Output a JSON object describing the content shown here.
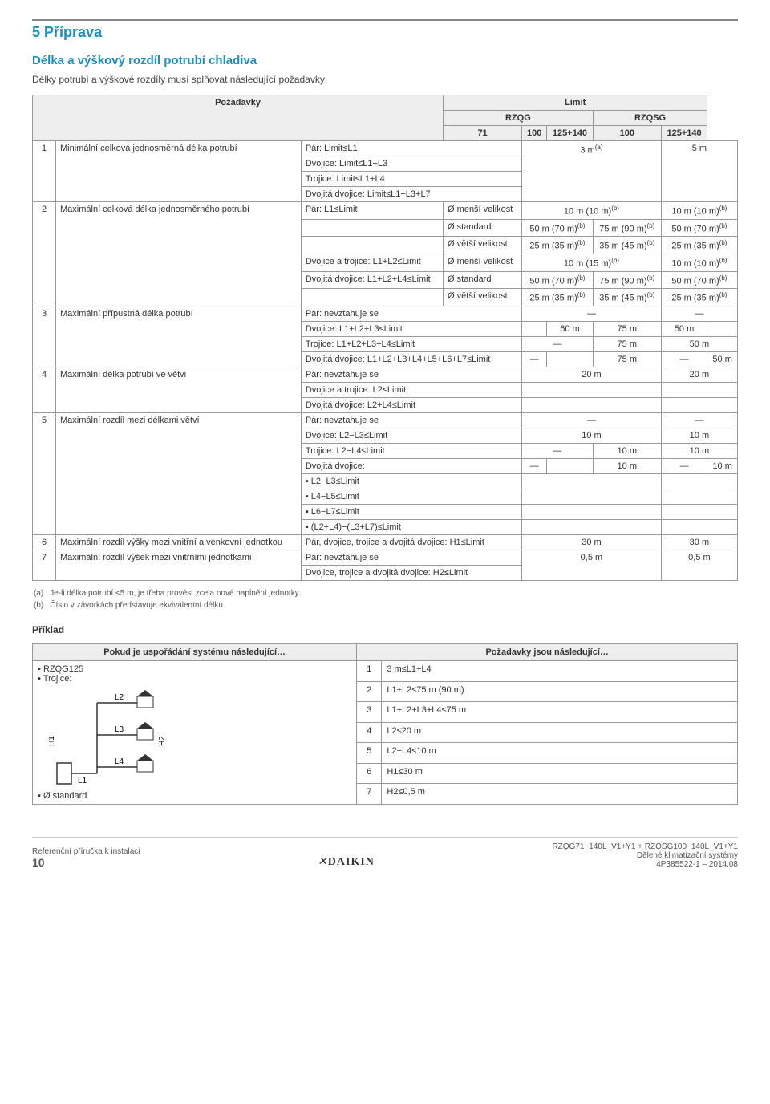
{
  "section_number": "5",
  "section_title": "Příprava",
  "subtitle": "Délka a výškový rozdíl potrubí chladiva",
  "intro": "Délky potrubí a výškové rozdíly musí splňovat následující požadavky:",
  "limits_table": {
    "h_req": "Požadavky",
    "h_limit": "Limit",
    "h_rzqg": "RZQG",
    "h_rzqsg": "RZQSG",
    "h_71": "71",
    "h_100a": "100",
    "h_125a": "125+140",
    "h_100b": "100",
    "h_125b": "125+140",
    "rows": [
      {
        "n": "1",
        "name": "Minimální celková jednosměrná délka potrubí",
        "req_lines": [
          "Pár: Limit≤L1",
          "Dvojice: Limit≤L1+L3",
          "Trojice: Limit≤L1+L4",
          "Dvojitá dvojice: Limit≤L1+L3+L7"
        ],
        "c1": "",
        "c2": "3 m(a)",
        "c3": "",
        "c4": "5 m",
        "c5": ""
      },
      {
        "n": "2",
        "name": "Maximální celková délka jednosměrného potrubí",
        "sub": [
          {
            "req": "Pár: L1≤Limit",
            "sub2": "Ø menší velikost",
            "c1": "",
            "c2": "10 m (10 m)(b)",
            "c3": "",
            "c4": "10 m (10 m)(b)",
            "c5": ""
          },
          {
            "req": "",
            "sub2": "Ø standard",
            "c1": "50 m (70 m)(b)",
            "c2": "",
            "c3": "75 m (90 m)(b)",
            "c4": "50 m (70 m)(b)",
            "c5": ""
          },
          {
            "req": "",
            "sub2": "Ø větší velikost",
            "c1": "25 m (35 m)(b)",
            "c2": "",
            "c3": "35 m (45 m)(b)",
            "c4": "25 m (35 m)(b)",
            "c5": ""
          },
          {
            "req": "Dvojice a trojice: L1+L2≤Limit",
            "sub2": "Ø menší velikost",
            "c1": "",
            "c2": "10 m (15 m)(b)",
            "c3": "",
            "c4": "10 m (10 m)(b)",
            "c5": ""
          },
          {
            "req": "Dvojitá dvojice: L1+L2+L4≤Limit",
            "sub2": "Ø standard",
            "c1": "50 m (70 m)(b)",
            "c2": "",
            "c3": "75 m (90 m)(b)",
            "c4": "50 m (70 m)(b)",
            "c5": ""
          },
          {
            "req": "",
            "sub2": "Ø větší velikost",
            "c1": "25 m (35 m)(b)",
            "c2": "",
            "c3": "35 m (45 m)(b)",
            "c4": "25 m (35 m)(b)",
            "c5": ""
          }
        ]
      },
      {
        "n": "3",
        "name": "Maximální přípustná délka potrubí",
        "sub": [
          {
            "req": "Pár: nevztahuje se",
            "c1": "",
            "c2": "—",
            "c3": "",
            "c4": "—",
            "c5": ""
          },
          {
            "req": "Dvojice: L1+L2+L3≤Limit",
            "c1": "",
            "c2": "60 m",
            "c3": "75 m",
            "c4": "50 m",
            "c5": ""
          },
          {
            "req": "Trojice: L1+L2+L3+L4≤Limit",
            "c1": "—",
            "c2": "",
            "c3": "75 m",
            "c4": "50 m",
            "c5": ""
          },
          {
            "req": "Dvojitá dvojice: L1+L2+L3+L4+L5+L6+L7≤Limit",
            "c1": "—",
            "c2": "",
            "c3": "75 m",
            "c4": "—",
            "c5": "50 m"
          }
        ]
      },
      {
        "n": "4",
        "name": "Maximální délka potrubí ve větvi",
        "sub": [
          {
            "req": "Pár: nevztahuje se",
            "c1": "",
            "c2": "20 m",
            "c3": "",
            "c4": "20 m",
            "c5": ""
          },
          {
            "req": "Dvojice a trojice: L2≤Limit",
            "c1": "",
            "c2": "",
            "c3": "",
            "c4": "",
            "c5": ""
          },
          {
            "req": "Dvojitá dvojice: L2+L4≤Limit",
            "c1": "",
            "c2": "",
            "c3": "",
            "c4": "",
            "c5": ""
          }
        ]
      },
      {
        "n": "5",
        "name": "Maximální rozdíl mezi délkami větví",
        "sub": [
          {
            "req": "Pár: nevztahuje se",
            "c1": "",
            "c2": "—",
            "c3": "",
            "c4": "—",
            "c5": ""
          },
          {
            "req": "Dvojice: L2−L3≤Limit",
            "c1": "",
            "c2": "10 m",
            "c3": "",
            "c4": "10 m",
            "c5": ""
          },
          {
            "req": "Trojice: L2−L4≤Limit",
            "c1": "—",
            "c2": "",
            "c3": "10 m",
            "c4": "10 m",
            "c5": ""
          },
          {
            "req": "Dvojitá dvojice:",
            "c1": "—",
            "c2": "",
            "c3": "10 m",
            "c4": "—",
            "c5": "10 m"
          },
          {
            "req": "▪ L2−L3≤Limit",
            "c1": "",
            "c2": "",
            "c3": "",
            "c4": "",
            "c5": ""
          },
          {
            "req": "▪ L4−L5≤Limit",
            "c1": "",
            "c2": "",
            "c3": "",
            "c4": "",
            "c5": ""
          },
          {
            "req": "▪ L6−L7≤Limit",
            "c1": "",
            "c2": "",
            "c3": "",
            "c4": "",
            "c5": ""
          },
          {
            "req": "▪ (L2+L4)−(L3+L7)≤Limit",
            "c1": "",
            "c2": "",
            "c3": "",
            "c4": "",
            "c5": ""
          }
        ]
      },
      {
        "n": "6",
        "name": "Maximální rozdíl výšky mezi vnitřní a venkovní jednotkou",
        "req_lines": [
          "Pár, dvojice, trojice a dvojitá dvojice: H1≤Limit"
        ],
        "c1": "",
        "c2": "30 m",
        "c3": "",
        "c4": "30 m",
        "c5": ""
      },
      {
        "n": "7",
        "name": "Maximální rozdíl výšek mezi vnitřními jednotkami",
        "req_lines": [
          "Pár: nevztahuje se",
          "Dvojice, trojice a dvojitá dvojice: H2≤Limit"
        ],
        "c1": "",
        "c2": "0,5 m",
        "c3": "",
        "c4": "0,5 m",
        "c5": ""
      }
    ]
  },
  "notes": {
    "a_key": "(a)",
    "a_txt": "Je-li délka potrubí <5 m, je třeba provést zcela nové naplnění jednotky.",
    "b_key": "(b)",
    "b_txt": "Číslo v závorkách představuje ekvivalentní délku."
  },
  "example_label": "Příklad",
  "example_table": {
    "h_left": "Pokud je uspořádání systému následující…",
    "h_right": "Požadavky jsou následující…",
    "left_items": [
      "▪ RZQG125",
      "▪ Trojice:",
      "▪ Ø standard"
    ],
    "diagram_labels": {
      "L1": "L1",
      "L2": "L2",
      "L3": "L3",
      "L4": "L4",
      "H1": "H1",
      "H2": "H2"
    },
    "right_rows": [
      {
        "n": "1",
        "t": "3 m≤L1+L4"
      },
      {
        "n": "2",
        "t": "L1+L2≤75 m (90 m)"
      },
      {
        "n": "3",
        "t": "L1+L2+L3+L4≤75 m"
      },
      {
        "n": "4",
        "t": "L2≤20 m"
      },
      {
        "n": "5",
        "t": "L2−L4≤10 m"
      },
      {
        "n": "6",
        "t": "H1≤30 m"
      },
      {
        "n": "7",
        "t": "H2≤0,5 m"
      }
    ]
  },
  "footer": {
    "left_l1": "Referenční příručka k instalaci",
    "left_l2": "10",
    "mid": "DAIKIN",
    "right_l1": "RZQG71~140L_V1+Y1 + RZQSG100~140L_V1+Y1",
    "right_l2": "Dělené klimatizační systémy",
    "right_l3": "4P385522-1 – 2014.08"
  }
}
